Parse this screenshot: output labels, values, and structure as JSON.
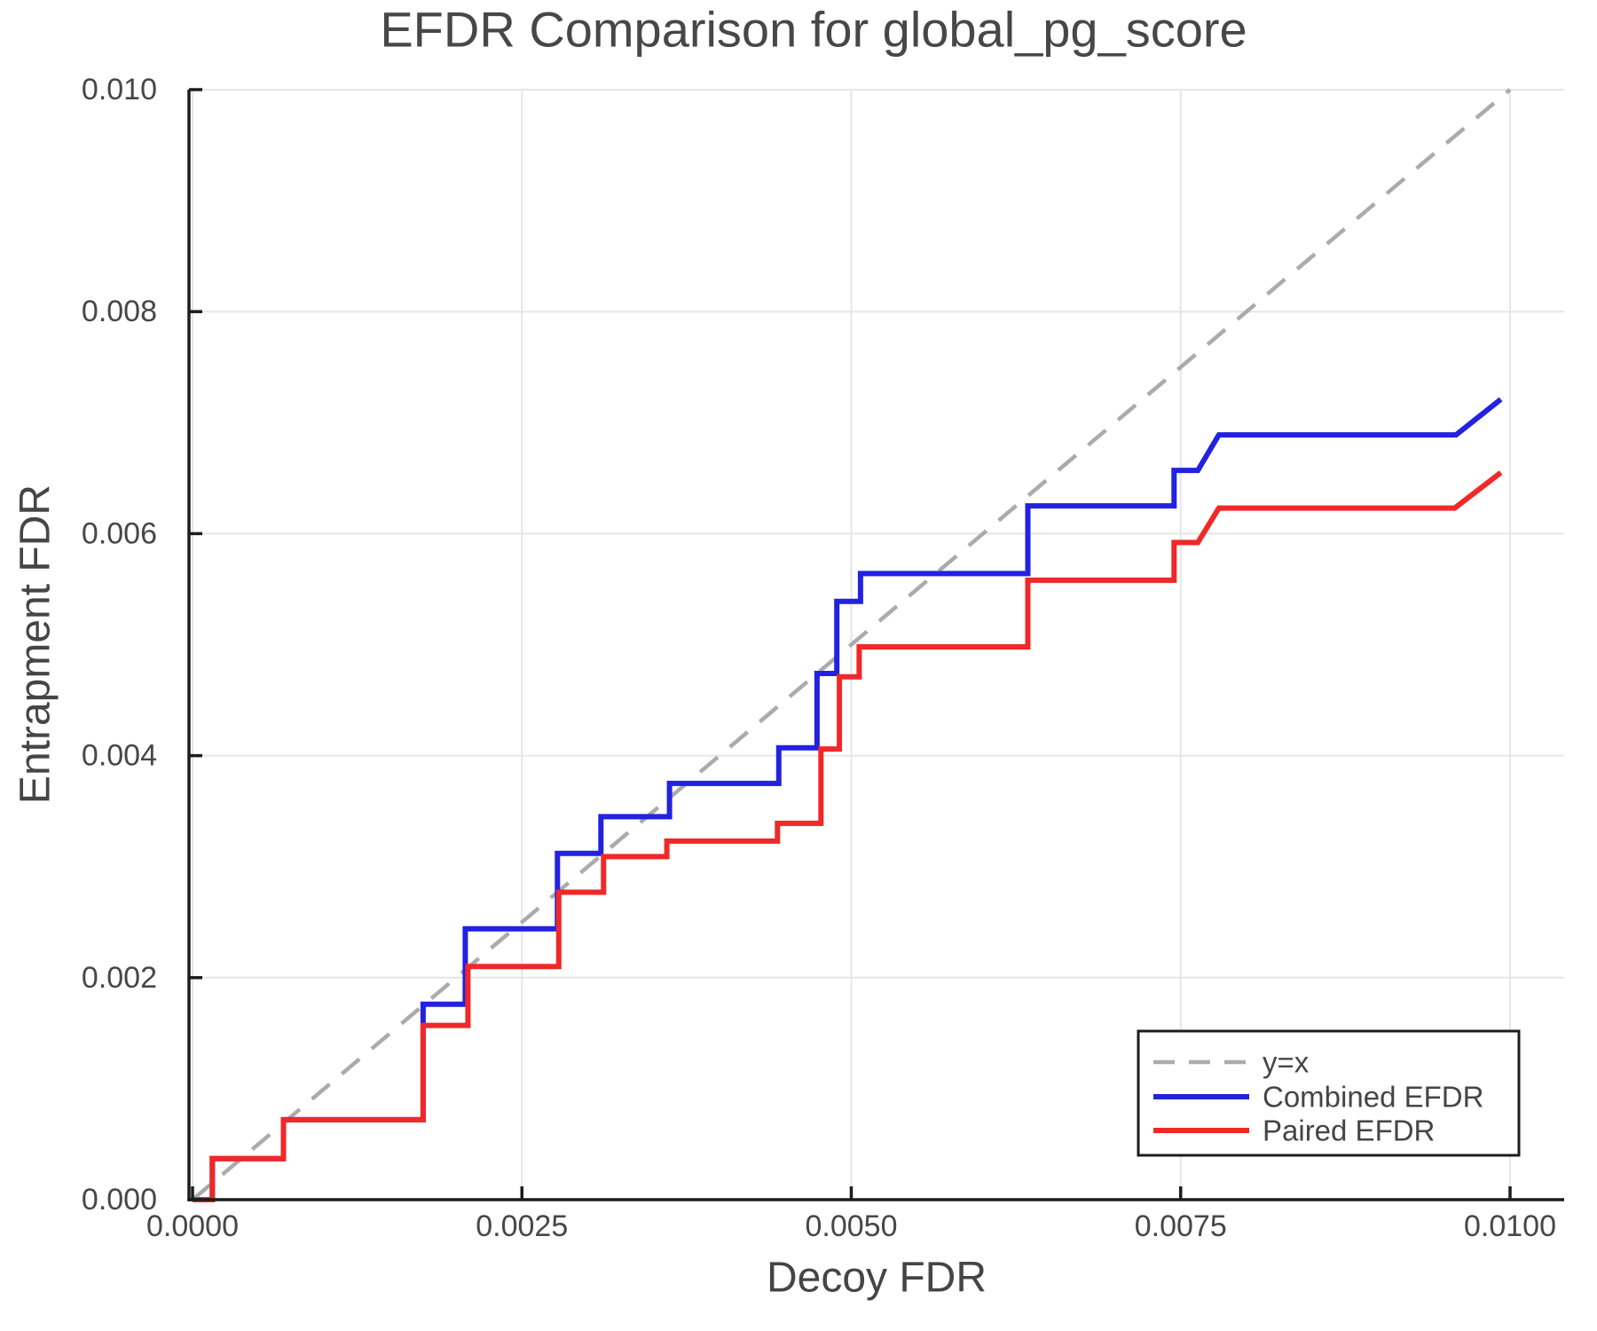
{
  "chart_data": {
    "type": "line",
    "title": "EFDR Comparison for global_pg_score",
    "xlabel": "Decoy FDR",
    "ylabel": "Entrapment FDR",
    "xlim": [
      0.0,
      0.0104
    ],
    "ylim": [
      0.0,
      0.01
    ],
    "grid": true,
    "legend_position": "lower right",
    "x_ticks": [
      {
        "value": 0.0,
        "label": "0.0000"
      },
      {
        "value": 0.0025,
        "label": "0.0025"
      },
      {
        "value": 0.005,
        "label": "0.0050"
      },
      {
        "value": 0.0075,
        "label": "0.0075"
      },
      {
        "value": 0.01,
        "label": "0.0100"
      }
    ],
    "y_ticks": [
      {
        "value": 0.0,
        "label": "0.000"
      },
      {
        "value": 0.002,
        "label": "0.002"
      },
      {
        "value": 0.004,
        "label": "0.004"
      },
      {
        "value": 0.006,
        "label": "0.006"
      },
      {
        "value": 0.008,
        "label": "0.008"
      },
      {
        "value": 0.01,
        "label": "0.010"
      }
    ],
    "identity_line": {
      "name": "y=x",
      "color": "#ababab",
      "style": "dashed",
      "points": [
        [
          0.0,
          0.0
        ],
        [
          0.01,
          0.01
        ]
      ]
    },
    "series": [
      {
        "name": "Combined EFDR",
        "color": "#2222e0",
        "style": "solid",
        "points": [
          [
            0,
            0
          ],
          [
            0.00015,
            0
          ],
          [
            0.00015,
            0.00037
          ],
          [
            0.00069,
            0.00037
          ],
          [
            0.00069,
            0.00072
          ],
          [
            0.00175,
            0.00072
          ],
          [
            0.00175,
            0.00176
          ],
          [
            0.00207,
            0.00176
          ],
          [
            0.00207,
            0.00244
          ],
          [
            0.00277,
            0.00244
          ],
          [
            0.00277,
            0.00312
          ],
          [
            0.0031,
            0.00312
          ],
          [
            0.0031,
            0.00345
          ],
          [
            0.00362,
            0.00345
          ],
          [
            0.00362,
            0.00375
          ],
          [
            0.00445,
            0.00375
          ],
          [
            0.00445,
            0.00407
          ],
          [
            0.00474,
            0.00407
          ],
          [
            0.00474,
            0.00474
          ],
          [
            0.00489,
            0.00474
          ],
          [
            0.00489,
            0.00539
          ],
          [
            0.00507,
            0.00539
          ],
          [
            0.00507,
            0.00564
          ],
          [
            0.00634,
            0.00564
          ],
          [
            0.00634,
            0.00625
          ],
          [
            0.00745,
            0.00625
          ],
          [
            0.00745,
            0.00657
          ],
          [
            0.00763,
            0.00657
          ],
          [
            0.00779,
            0.00689
          ],
          [
            0.00959,
            0.00689
          ],
          [
            0.00993,
            0.00721
          ]
        ]
      },
      {
        "name": "Paired EFDR",
        "color": "#f02828",
        "style": "solid",
        "points": [
          [
            0,
            0
          ],
          [
            0.00015,
            0
          ],
          [
            0.00015,
            0.00037
          ],
          [
            0.00069,
            0.00037
          ],
          [
            0.00069,
            0.00072
          ],
          [
            0.00175,
            0.00072
          ],
          [
            0.00175,
            0.00157
          ],
          [
            0.00209,
            0.00157
          ],
          [
            0.00209,
            0.0021
          ],
          [
            0.00278,
            0.0021
          ],
          [
            0.00278,
            0.00277
          ],
          [
            0.00312,
            0.00277
          ],
          [
            0.00312,
            0.00309
          ],
          [
            0.0036,
            0.00309
          ],
          [
            0.0036,
            0.00323
          ],
          [
            0.00444,
            0.00323
          ],
          [
            0.00444,
            0.00339
          ],
          [
            0.00477,
            0.00339
          ],
          [
            0.00477,
            0.00406
          ],
          [
            0.00491,
            0.00406
          ],
          [
            0.00491,
            0.00471
          ],
          [
            0.00506,
            0.00471
          ],
          [
            0.00506,
            0.00498
          ],
          [
            0.00634,
            0.00498
          ],
          [
            0.00634,
            0.00558
          ],
          [
            0.00745,
            0.00558
          ],
          [
            0.00745,
            0.00592
          ],
          [
            0.00763,
            0.00592
          ],
          [
            0.00779,
            0.00623
          ],
          [
            0.00958,
            0.00623
          ],
          [
            0.00993,
            0.00655
          ]
        ]
      }
    ],
    "legend": {
      "items": [
        {
          "label": "y=x",
          "color": "#ababab",
          "dashed": true
        },
        {
          "label": "Combined EFDR",
          "color": "#2222e0",
          "dashed": false
        },
        {
          "label": "Paired EFDR",
          "color": "#f02828",
          "dashed": false
        }
      ]
    }
  },
  "colors": {
    "background": "#ffffff",
    "grid": "#e6e6e6",
    "spine": "#1c1c1c",
    "tick": "#1c1c1c",
    "text": "#474747",
    "legend_border": "#1c1c1c",
    "legend_background": "#ffffff"
  }
}
